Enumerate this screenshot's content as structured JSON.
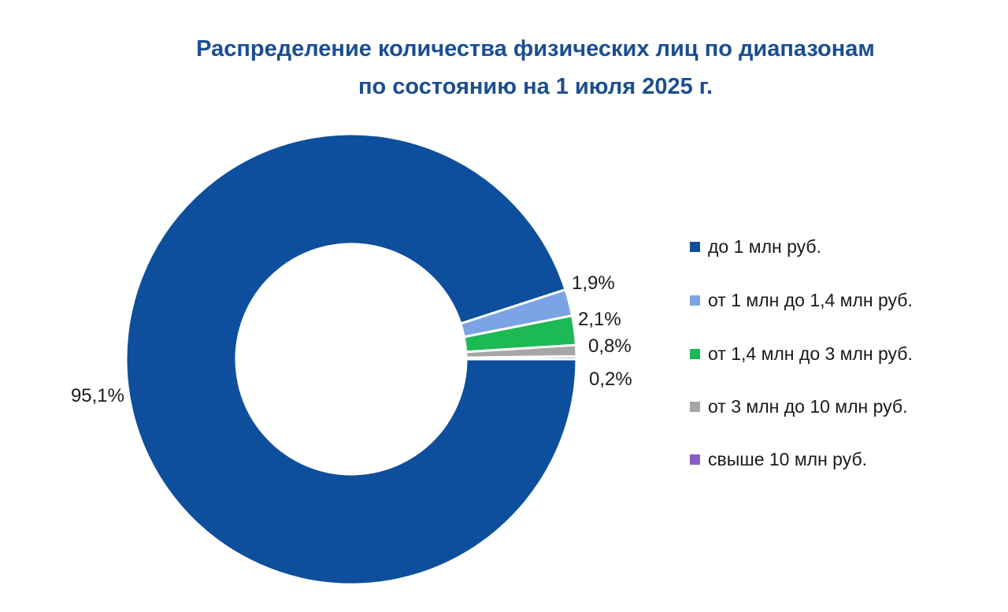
{
  "chart_data": {
    "type": "pie",
    "variant": "donut",
    "title": "Распределение количества физических лиц по диапазонам",
    "subtitle": "по состоянию на 1 июля 2025 г.",
    "slices": [
      {
        "label": "до 1 млн руб.",
        "value": 95.1,
        "value_label": "95,1%",
        "color": "#0d4f9c"
      },
      {
        "label": "от 1 млн до 1,4 млн руб.",
        "value": 1.9,
        "value_label": "1,9%",
        "color": "#7ba3e6"
      },
      {
        "label": "от 1,4 млн до 3 млн руб.",
        "value": 2.1,
        "value_label": "2,1%",
        "color": "#1db954"
      },
      {
        "label": "от 3 млн до 10 млн руб.",
        "value": 0.8,
        "value_label": "0,8%",
        "color": "#a6a6a6"
      },
      {
        "label": "свыше 10 млн руб.",
        "value": 0.2,
        "value_label": "0,2%",
        "color": "#8a5cc7"
      }
    ],
    "legend_position": "right",
    "labels_unit": "%"
  }
}
